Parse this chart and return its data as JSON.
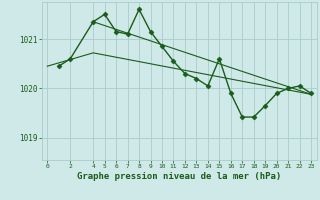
{
  "title": "Graphe pression niveau de la mer (hPa)",
  "bg_color": "#cfe8e8",
  "grid_color": "#aacccc",
  "line_color": "#1a5c1a",
  "x_ticks": [
    0,
    2,
    4,
    5,
    6,
    7,
    8,
    9,
    10,
    11,
    12,
    13,
    14,
    15,
    16,
    17,
    18,
    19,
    20,
    21,
    22,
    23
  ],
  "y_ticks": [
    1019,
    1020,
    1021
  ],
  "ylim": [
    1018.55,
    1021.75
  ],
  "xlim": [
    -0.5,
    23.5
  ],
  "data_x": [
    1,
    2,
    4,
    5,
    6,
    7,
    8,
    9,
    10,
    11,
    12,
    13,
    14,
    15,
    16,
    17,
    18,
    19,
    20,
    21,
    22,
    23
  ],
  "data_y": [
    1020.45,
    1020.6,
    1021.35,
    1021.5,
    1021.15,
    1021.1,
    1021.6,
    1021.15,
    1020.85,
    1020.55,
    1020.3,
    1020.2,
    1020.05,
    1020.6,
    1019.9,
    1019.42,
    1019.42,
    1019.65,
    1019.9,
    1020.0,
    1020.05,
    1019.9
  ],
  "trend1_x": [
    0,
    4,
    23
  ],
  "trend1_y": [
    1020.45,
    1020.72,
    1019.88
  ],
  "trend2_x": [
    4,
    23
  ],
  "trend2_y": [
    1021.35,
    1019.88
  ],
  "font_color": "#1a5c1a",
  "marker": "D",
  "markersize": 2.5,
  "linewidth": 1.0,
  "title_fontsize": 6.5
}
